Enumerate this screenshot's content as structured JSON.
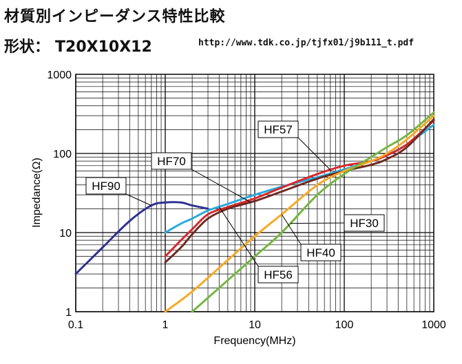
{
  "header": {
    "title": "材質別インピーダンス特性比較",
    "shape_label": "形状：",
    "shape_value": "T20X10X12",
    "url": "http://www.tdk.co.jp/tjfx01/j9b111_t.pdf"
  },
  "chart_data": {
    "type": "line",
    "title": "材質別インピーダンス特性比較",
    "xlabel": "Frequency(MHz)",
    "ylabel": "Impedance(Ω)",
    "xscale": "log",
    "yscale": "log",
    "xlim": [
      0.1,
      1000
    ],
    "ylim": [
      1,
      1000
    ],
    "grid": true,
    "x_ticks": [
      "0.1",
      "1",
      "10",
      "100",
      "1000"
    ],
    "y_ticks": [
      "1",
      "10",
      "100",
      "1000"
    ],
    "series": [
      {
        "name": "HF90",
        "color": "#2e3192",
        "x": [
          0.1,
          0.2,
          0.4,
          0.7,
          1.0,
          1.5,
          2.0,
          3.0
        ],
        "y": [
          3.0,
          6.5,
          14,
          22,
          24,
          24,
          22,
          20
        ]
      },
      {
        "name": "HF70",
        "color": "#29aadb",
        "x": [
          1.0,
          1.5,
          2.0,
          3.0,
          5.0,
          10,
          20,
          50,
          100,
          200,
          300,
          500,
          1000
        ],
        "y": [
          10,
          13,
          15,
          19,
          23,
          30,
          38,
          50,
          63,
          80,
          95,
          130,
          230
        ]
      },
      {
        "name": "HF57",
        "color": "#d7282f",
        "x": [
          1.0,
          1.5,
          2.0,
          3.0,
          5.0,
          10,
          20,
          50,
          100,
          200,
          300,
          500,
          1000
        ],
        "y": [
          5.0,
          8.0,
          11,
          17,
          21,
          27,
          37,
          55,
          70,
          80,
          95,
          130,
          260
        ]
      },
      {
        "name": "HF56",
        "color": "#6d2b22",
        "x": [
          1.0,
          1.5,
          2.0,
          3.0,
          5.0,
          10,
          20,
          50,
          100,
          200,
          300,
          500,
          1000
        ],
        "y": [
          4.2,
          6.5,
          9.5,
          15,
          20,
          25,
          33,
          48,
          60,
          72,
          85,
          120,
          270
        ]
      },
      {
        "name": "HF40",
        "color": "#f7a823",
        "x": [
          1.0,
          2.0,
          5.0,
          10,
          20,
          50,
          100,
          200,
          300,
          500,
          1000
        ],
        "y": [
          1.0,
          1.8,
          4.5,
          9.0,
          17,
          40,
          60,
          80,
          100,
          150,
          300
        ]
      },
      {
        "name": "HF30",
        "color": "#77b543",
        "x": [
          2.0,
          5.0,
          10,
          20,
          50,
          100,
          200,
          300,
          500,
          1000
        ],
        "y": [
          1.0,
          2.5,
          5.0,
          10,
          30,
          55,
          90,
          120,
          170,
          330
        ]
      }
    ],
    "annotations": [
      {
        "text": "HF90",
        "series": "HF90",
        "at_x": 0.7
      },
      {
        "text": "HF70",
        "series": "HF56",
        "at_x": 9
      },
      {
        "text": "HF57",
        "series": "HF57",
        "at_x": 70
      },
      {
        "text": "HF30",
        "series": "HF30",
        "at_x": 25
      },
      {
        "text": "HF40",
        "series": "HF40",
        "at_x": 20
      },
      {
        "text": "HF56",
        "series": "HF70",
        "at_x": 4
      }
    ]
  }
}
